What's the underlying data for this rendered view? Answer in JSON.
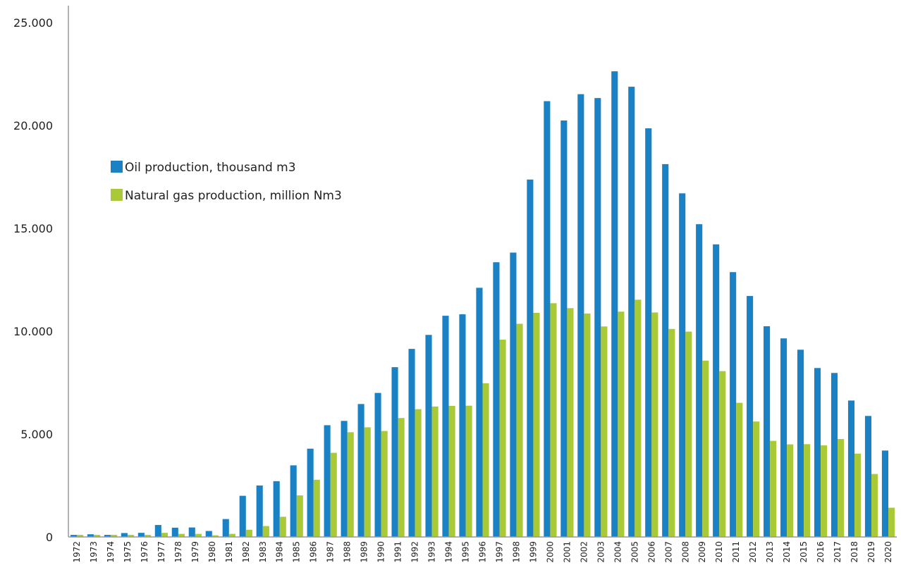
{
  "chart_data": {
    "type": "bar",
    "categories": [
      "1972",
      "1973",
      "1974",
      "1975",
      "1976",
      "1977",
      "1978",
      "1979",
      "1980",
      "1981",
      "1982",
      "1983",
      "1984",
      "1985",
      "1986",
      "1987",
      "1988",
      "1989",
      "1990",
      "1991",
      "1992",
      "1993",
      "1994",
      "1995",
      "1996",
      "1997",
      "1998",
      "1999",
      "2000",
      "2001",
      "2002",
      "2003",
      "2004",
      "2005",
      "2006",
      "2007",
      "2008",
      "2009",
      "2010",
      "2011",
      "2012",
      "2013",
      "2014",
      "2015",
      "2016",
      "2017",
      "2018",
      "2019",
      "2020"
    ],
    "series": [
      {
        "name": "Oil production, thousand m3",
        "color": "#1a82c4",
        "values": [
          100,
          130,
          100,
          190,
          200,
          580,
          450,
          460,
          290,
          870,
          2000,
          2500,
          2710,
          3480,
          4290,
          5430,
          5640,
          6460,
          7000,
          8250,
          9140,
          9820,
          10750,
          10820,
          12110,
          13350,
          13820,
          17370,
          21180,
          20240,
          21520,
          21330,
          22630,
          21880,
          19860,
          18120,
          16700,
          15200,
          14220,
          12870,
          11710,
          10240,
          9650,
          9100,
          8210,
          7970,
          6630,
          5880,
          4200
        ]
      },
      {
        "name": "Natural gas production, million Nm3",
        "color": "#a9c936",
        "values": [
          100,
          100,
          100,
          100,
          100,
          200,
          150,
          150,
          80,
          150,
          350,
          530,
          980,
          2020,
          2780,
          4090,
          5090,
          5330,
          5150,
          5780,
          6210,
          6340,
          6370,
          6380,
          7470,
          9590,
          10360,
          10890,
          11360,
          11120,
          10860,
          10230,
          10950,
          11530,
          10910,
          10110,
          9980,
          8570,
          8060,
          6520,
          5610,
          4670,
          4500,
          4510,
          4450,
          4760,
          4050,
          3060,
          1420
        ]
      }
    ],
    "y_ticks": [
      "0",
      "5.000",
      "10.000",
      "15.000",
      "20.000",
      "25.000"
    ],
    "y_tick_values": [
      0,
      5000,
      10000,
      15000,
      20000,
      25000
    ],
    "ylim": [
      0,
      25000
    ],
    "legend_position": "upper-left",
    "grid": false
  }
}
